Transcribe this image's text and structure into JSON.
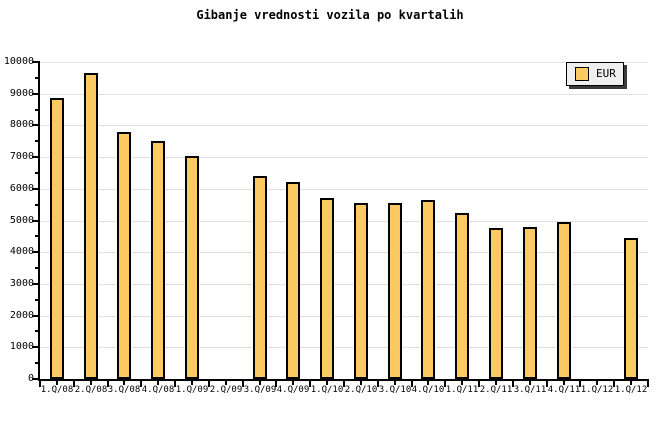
{
  "title": "Gibanje vrednosti vozila po kvartalih",
  "legend": {
    "label": "EUR"
  },
  "colors": {
    "bar_fill": "#fbca63",
    "bar_border": "#000000",
    "gridline": "#e0e0e0",
    "axis": "#000000",
    "legend_bg": "#efefef"
  },
  "chart_data": {
    "type": "bar",
    "title": "Gibanje vrednosti vozila po kvartalih",
    "categories": [
      "1.Q/08",
      "2.Q/08",
      "3.Q/08",
      "4.Q/08",
      "1.Q/09",
      "2.Q/09",
      "3.Q/09",
      "4.Q/09",
      "1.Q/10",
      "2.Q/10",
      "3.Q/10",
      "4.Q/10",
      "1.Q/11",
      "2.Q/11",
      "3.Q/11",
      "4.Q/11",
      "1.Q/12",
      "1.Q/12"
    ],
    "series": [
      {
        "name": "EUR",
        "values": [
          8850,
          9650,
          7800,
          7500,
          7050,
          null,
          6400,
          6200,
          5700,
          5550,
          5550,
          5650,
          5250,
          4750,
          4800,
          4950,
          null,
          4450
        ]
      }
    ],
    "xlabel": "",
    "ylabel": "",
    "ylim": [
      0,
      10000
    ],
    "ytick_interval": 1000,
    "ytick_minor_interval": 500,
    "yticks": [
      0,
      1000,
      2000,
      3000,
      4000,
      5000,
      6000,
      7000,
      8000,
      9000,
      10000
    ],
    "grid": "horizontal-major",
    "legend_entries": [
      "EUR"
    ],
    "legend_position": "top-right"
  }
}
